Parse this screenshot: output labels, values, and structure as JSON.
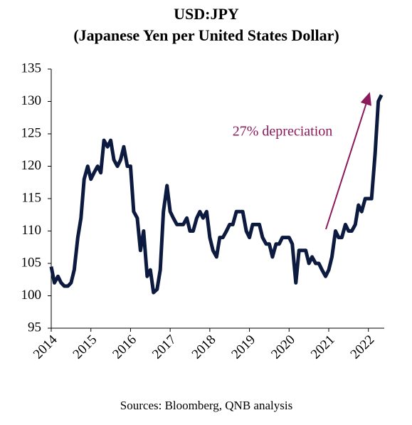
{
  "chart_data": {
    "type": "line",
    "title": "USD:JPY",
    "subtitle": "(Japanese Yen per United States Dollar)",
    "source": "Sources: Bloomberg, QNB analysis",
    "annotation": "27% depreciation",
    "x": [
      2014.0,
      2014.08,
      2014.17,
      2014.25,
      2014.33,
      2014.42,
      2014.5,
      2014.58,
      2014.67,
      2014.75,
      2014.83,
      2014.92,
      2015.0,
      2015.08,
      2015.17,
      2015.25,
      2015.33,
      2015.42,
      2015.5,
      2015.58,
      2015.67,
      2015.75,
      2015.83,
      2015.92,
      2016.0,
      2016.08,
      2016.17,
      2016.25,
      2016.33,
      2016.42,
      2016.5,
      2016.58,
      2016.67,
      2016.75,
      2016.83,
      2016.92,
      2017.0,
      2017.08,
      2017.17,
      2017.25,
      2017.33,
      2017.42,
      2017.5,
      2017.58,
      2017.67,
      2017.75,
      2017.83,
      2017.92,
      2018.0,
      2018.08,
      2018.17,
      2018.25,
      2018.33,
      2018.42,
      2018.5,
      2018.58,
      2018.67,
      2018.75,
      2018.83,
      2018.92,
      2019.0,
      2019.08,
      2019.17,
      2019.25,
      2019.33,
      2019.42,
      2019.5,
      2019.58,
      2019.67,
      2019.75,
      2019.83,
      2019.92,
      2020.0,
      2020.08,
      2020.17,
      2020.25,
      2020.33,
      2020.42,
      2020.5,
      2020.58,
      2020.67,
      2020.75,
      2020.83,
      2020.92,
      2021.0,
      2021.08,
      2021.17,
      2021.25,
      2021.33,
      2021.42,
      2021.5,
      2021.58,
      2021.67,
      2021.75,
      2021.83,
      2021.92,
      2022.0,
      2022.08,
      2022.17,
      2022.25,
      2022.33
    ],
    "series": [
      {
        "name": "USD:JPY",
        "color": "#0d1a40",
        "values": [
          104.5,
          102,
          103,
          102,
          101.5,
          101.5,
          102,
          104,
          109,
          112,
          118,
          120,
          118,
          119,
          120,
          119,
          124,
          123,
          124,
          121,
          120,
          121,
          123,
          120,
          120,
          113,
          112,
          107,
          110,
          103,
          104,
          100.5,
          101,
          104,
          113,
          117,
          113,
          112,
          111,
          111,
          111,
          112,
          110,
          110,
          112,
          113,
          112,
          113,
          109,
          107,
          106,
          109,
          109,
          110,
          111,
          111,
          113,
          113,
          113,
          110,
          109,
          111,
          111,
          111,
          109,
          108,
          108,
          106,
          108,
          108,
          109,
          109,
          109,
          108,
          102,
          107,
          107,
          107,
          105,
          106,
          105,
          105,
          104,
          103,
          104,
          106,
          110,
          109,
          109,
          111,
          110,
          110,
          111,
          114,
          113,
          115,
          115,
          115,
          122,
          130,
          131
        ]
      }
    ],
    "xlim": [
      2014,
      2022.4
    ],
    "xticks": [
      2014,
      2015,
      2016,
      2017,
      2018,
      2019,
      2020,
      2021,
      2022
    ],
    "ylim": [
      95,
      135
    ],
    "yticks": [
      95,
      100,
      105,
      110,
      115,
      120,
      125,
      130,
      135
    ],
    "grid": false
  }
}
